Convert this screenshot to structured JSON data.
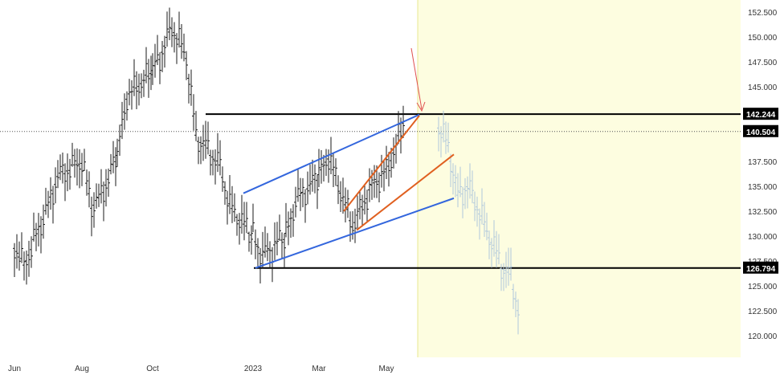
{
  "chart_data": {
    "type": "line",
    "title": "",
    "xlabel": "",
    "ylabel": "",
    "style": "ohlc-bars",
    "x_ticks": [
      "Jun",
      "Aug",
      "Oct",
      "2023",
      "Mar",
      "May"
    ],
    "y_ticks": [
      "152.500",
      "150.000",
      "147.500",
      "145.000",
      "142.500",
      "137.500",
      "135.000",
      "132.500",
      "130.000",
      "127.500",
      "125.000",
      "122.500",
      "120.000"
    ],
    "ylim": [
      119.3,
      153.4
    ],
    "grid": false,
    "colors": {
      "price_bars": "#1a1a1a",
      "projection_bars": "#b0c8dc",
      "projection_zone": "#fdfde0",
      "channel_lines": "#3366dd",
      "wedge_lines": "#e06020",
      "horizontal_levels": "#000000",
      "arrow": "#e05050",
      "label_background": "#000000"
    },
    "series": [
      {
        "role": "price",
        "x": [
          "Jun",
          "Jun",
          "Jul",
          "Jul",
          "Aug",
          "Aug",
          "Aug",
          "Sep",
          "Sep",
          "Oct",
          "Oct",
          "Oct",
          "Nov",
          "Nov",
          "Nov",
          "Dec",
          "Dec",
          "2023",
          "2023",
          "Feb",
          "Feb",
          "Mar",
          "Mar",
          "Apr",
          "Apr",
          "Apr",
          "May",
          "May",
          "May"
        ],
        "values": [
          129.0,
          127.0,
          133.0,
          136.0,
          137.5,
          133.0,
          134.0,
          138.0,
          144.0,
          146.5,
          148.5,
          151.0,
          148.0,
          140.0,
          139.0,
          137.0,
          133.0,
          130.0,
          128.0,
          130.0,
          133.5,
          136.0,
          138.0,
          131.0,
          133.0,
          135.0,
          136.5,
          139.0,
          142.2
        ]
      },
      {
        "role": "projection",
        "x": [
          "Jun",
          "Jun",
          "Jun",
          "Jul",
          "Jul",
          "Jul",
          "Aug",
          "Aug",
          "Aug",
          "Aug"
        ],
        "values": [
          141.0,
          139.0,
          134.0,
          135.0,
          133.0,
          130.5,
          129.5,
          127.0,
          126.0,
          121.5
        ]
      }
    ],
    "levels": [
      {
        "value": 142.244,
        "label": "142.244"
      },
      {
        "value": 140.504,
        "label": "140.504"
      },
      {
        "value": 126.794,
        "label": "126.794"
      }
    ],
    "trendlines": [
      {
        "name": "channel-upper",
        "from": {
          "x": "Dec",
          "y": 134.3
        },
        "to": {
          "x": "May",
          "y": 142.2
        }
      },
      {
        "name": "channel-lower",
        "from": {
          "x": "2023",
          "y": 126.8
        },
        "to": {
          "x": "Jun",
          "y": 133.8
        }
      },
      {
        "name": "wedge-upper",
        "from": {
          "x": "Apr",
          "y": 132.5
        },
        "to": {
          "x": "May",
          "y": 142.1
        }
      },
      {
        "name": "wedge-lower",
        "from": {
          "x": "Apr",
          "y": 130.6
        },
        "to": {
          "x": "Jun",
          "y": 138.2
        }
      }
    ]
  }
}
